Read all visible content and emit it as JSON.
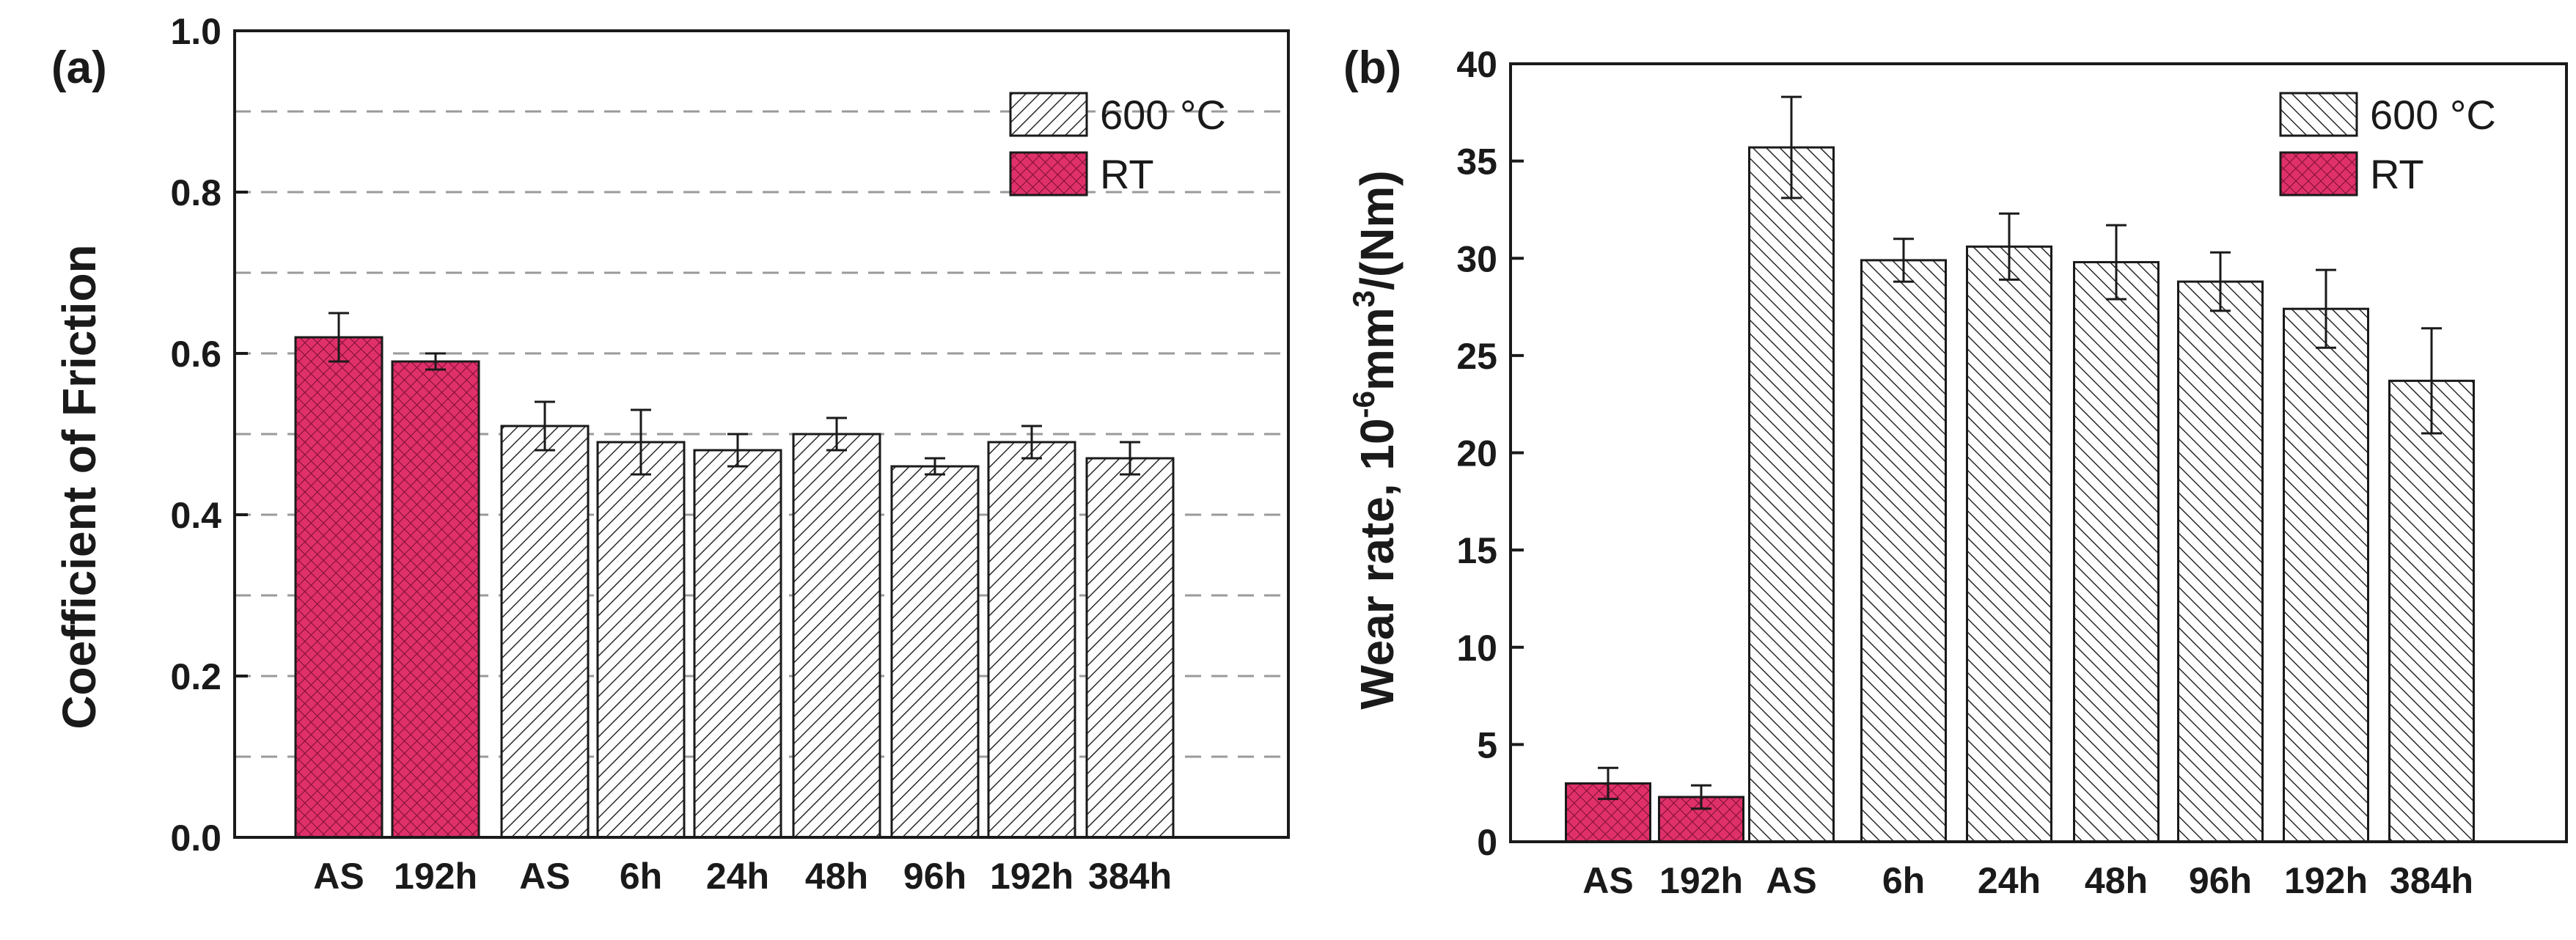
{
  "colors": {
    "rt_fill": "#e0306a",
    "hatch_stroke": "#2a2a2a",
    "grid": "#9a9a9a",
    "axis": "#1a1a1a"
  },
  "chart_data": [
    {
      "panel_label": "(a)",
      "type": "bar",
      "ylabel": "Coefficient of Friction",
      "xlabel": "",
      "ylim": [
        0,
        1.0
      ],
      "yticks": [
        "0.0",
        "0.2",
        "0.4",
        "0.6",
        "0.8",
        "1.0"
      ],
      "ytick_values": [
        0,
        0.2,
        0.4,
        0.6,
        0.8,
        1.0
      ],
      "grid_values": [
        0.1,
        0.2,
        0.3,
        0.4,
        0.5,
        0.6,
        0.7,
        0.8,
        0.9
      ],
      "grid": true,
      "legend_position": "top-right",
      "legend": [
        {
          "label": "600 °C",
          "style": "hatch"
        },
        {
          "label": "RT",
          "style": "solid"
        }
      ],
      "categories": [
        "AS",
        "192h",
        "AS",
        "6h",
        "24h",
        "48h",
        "96h",
        "192h",
        "384h"
      ],
      "values": [
        0.62,
        0.59,
        0.51,
        0.49,
        0.48,
        0.5,
        0.46,
        0.49,
        0.47
      ],
      "errors": [
        0.03,
        0.01,
        0.03,
        0.04,
        0.02,
        0.02,
        0.01,
        0.02,
        0.02
      ],
      "series_of_bar": [
        "RT",
        "RT",
        "600 °C",
        "600 °C",
        "600 °C",
        "600 °C",
        "600 °C",
        "600 °C",
        "600 °C"
      ]
    },
    {
      "panel_label": "(b)",
      "type": "bar",
      "ylabel_parts": [
        "Wear rate, 10",
        "-6",
        "mm",
        "3",
        "/(Nm)"
      ],
      "xlabel": "",
      "ylim": [
        0,
        40
      ],
      "yticks": [
        "0",
        "5",
        "10",
        "15",
        "20",
        "25",
        "30",
        "35",
        "40"
      ],
      "ytick_values": [
        0,
        5,
        10,
        15,
        20,
        25,
        30,
        35,
        40
      ],
      "grid": false,
      "legend_position": "top-right",
      "legend": [
        {
          "label": "600 °C",
          "style": "hatch"
        },
        {
          "label": "RT",
          "style": "solid"
        }
      ],
      "categories": [
        "AS",
        "192h",
        "AS",
        "6h",
        "24h",
        "48h",
        "96h",
        "192h",
        "384h"
      ],
      "values": [
        3.0,
        2.3,
        35.7,
        29.9,
        30.6,
        29.8,
        28.8,
        27.4,
        23.7
      ],
      "errors": [
        0.8,
        0.6,
        2.6,
        1.1,
        1.7,
        1.9,
        1.5,
        2.0,
        2.7
      ],
      "series_of_bar": [
        "RT",
        "RT",
        "600 °C",
        "600 °C",
        "600 °C",
        "600 °C",
        "600 °C",
        "600 °C",
        "600 °C"
      ]
    }
  ]
}
